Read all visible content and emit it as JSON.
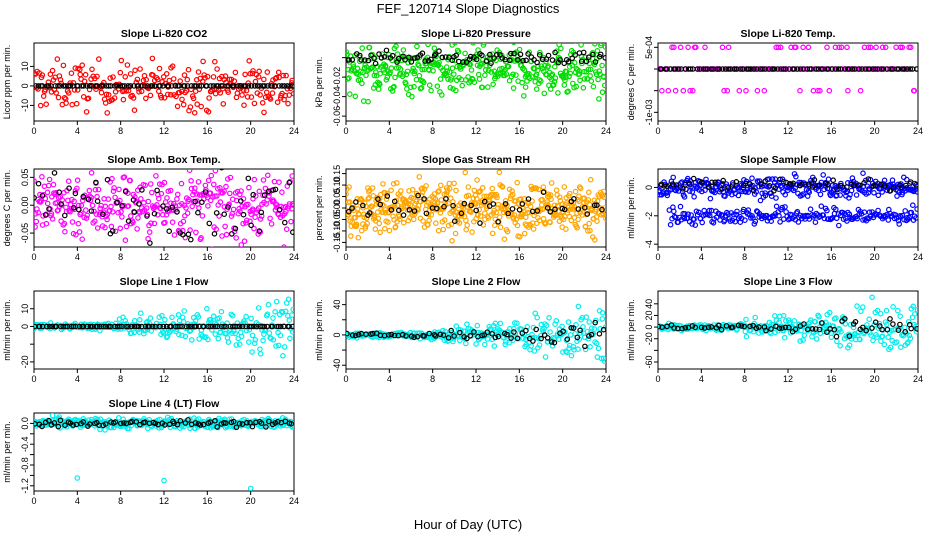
{
  "figure": {
    "title": "FEF_120714  Slope Diagnostics",
    "xlabel": "Hour of Day (UTC)"
  },
  "colors": {
    "red": "#ff0000",
    "green": "#00dd00",
    "magenta": "#ff00ff",
    "orange": "#ffa500",
    "blue": "#0000ff",
    "cyan": "#00eeee",
    "black": "#000000"
  },
  "chart_data": [
    {
      "type": "scatter",
      "title": "Slope Li-820 CO2",
      "ylabel": "Licor ppm per min.",
      "xlim": [
        0,
        24
      ],
      "ylim": [
        -18,
        22
      ],
      "xticks": [
        0,
        4,
        8,
        12,
        16,
        20,
        24
      ],
      "xtick_labels": [
        "0",
        "4",
        "8",
        "12",
        "16",
        "20",
        "24"
      ],
      "yticks": [
        -10,
        0,
        10
      ],
      "ytick_labels": [
        "-10",
        "0",
        "10"
      ],
      "series": [
        {
          "color": "red",
          "style": "scatter",
          "base": 0,
          "spread": 6,
          "x_range": [
            0,
            24
          ],
          "n": 260
        },
        {
          "color": "black",
          "style": "flat",
          "value": 0,
          "x_range": [
            0,
            24
          ],
          "n": 95
        }
      ]
    },
    {
      "type": "scatter",
      "title": "Slope Li-820 Pressure",
      "ylabel": "kPa per min.",
      "xlim": [
        0,
        24
      ],
      "ylim": [
        -0.065,
        0.015
      ],
      "xticks": [
        0,
        4,
        8,
        12,
        16,
        20,
        24
      ],
      "xtick_labels": [
        "0",
        "4",
        "8",
        "12",
        "16",
        "20",
        "24"
      ],
      "yticks": [
        -0.06,
        -0.04,
        -0.02,
        0.0
      ],
      "ytick_labels": [
        "-0.06",
        "-0.04",
        "-0.02",
        ""
      ],
      "series": [
        {
          "color": "green",
          "style": "band",
          "base": -0.012,
          "spread": 0.013,
          "x_range": [
            0,
            24
          ],
          "n": 420
        },
        {
          "color": "black",
          "style": "flat",
          "value": 0.0,
          "jitter": 0.003,
          "x_range": [
            0,
            24
          ],
          "n": 90
        }
      ]
    },
    {
      "type": "scatter",
      "title": "Slope Li-820 Temp.",
      "ylabel": "degrees C per min.",
      "xlim": [
        0,
        24
      ],
      "ylim": [
        -0.0012,
        0.0006
      ],
      "xticks": [
        0,
        4,
        8,
        12,
        16,
        20,
        24
      ],
      "xtick_labels": [
        "0",
        "4",
        "8",
        "12",
        "16",
        "20",
        "24"
      ],
      "yticks": [
        -0.001,
        -0.0005,
        0,
        0.0005
      ],
      "ytick_labels": [
        "-1e-03",
        "",
        "",
        "5e-04"
      ],
      "series": [
        {
          "color": "magenta",
          "style": "levels",
          "levels": [
            0,
            0.0005,
            -0.0005
          ],
          "x_range": [
            0,
            24
          ],
          "n": 140
        },
        {
          "color": "black",
          "style": "flat",
          "value": 0,
          "x_range": [
            0,
            24
          ],
          "n": 90
        }
      ]
    },
    {
      "type": "scatter",
      "title": "Slope Amb. Box Temp.",
      "ylabel": "degrees C per min.",
      "xlim": [
        0,
        24
      ],
      "ylim": [
        -0.075,
        0.065
      ],
      "xticks": [
        0,
        4,
        8,
        12,
        16,
        20,
        24
      ],
      "xtick_labels": [
        "0",
        "4",
        "8",
        "12",
        "16",
        "20",
        "24"
      ],
      "yticks": [
        -0.05,
        0.0,
        0.05
      ],
      "ytick_labels": [
        "-0.05",
        "0.00",
        "0.05"
      ],
      "series": [
        {
          "color": "magenta",
          "style": "scatter",
          "base": 0,
          "spread": 0.03,
          "x_range": [
            0,
            24
          ],
          "n": 380
        },
        {
          "color": "black",
          "style": "scatter",
          "base": 0,
          "spread": 0.028,
          "x_range": [
            0,
            24
          ],
          "n": 70
        }
      ]
    },
    {
      "type": "scatter",
      "title": "Slope Gas Stream RH",
      "ylabel": "percent per min.",
      "xlim": [
        0,
        24
      ],
      "ylim": [
        -0.17,
        0.17
      ],
      "xticks": [
        0,
        4,
        8,
        12,
        16,
        20,
        24
      ],
      "xtick_labels": [
        "0",
        "4",
        "8",
        "12",
        "16",
        "20",
        "24"
      ],
      "yticks": [
        -0.15,
        -0.1,
        -0.05,
        0.0,
        0.05,
        0.1,
        0.15
      ],
      "ytick_labels": [
        "-0.15",
        "-0.10",
        "-0.05",
        "0.00",
        "0.05",
        "0.10",
        "0.15"
      ],
      "series": [
        {
          "color": "orange",
          "style": "scatter",
          "base": 0,
          "spread": 0.055,
          "x_range": [
            0,
            24
          ],
          "n": 520
        },
        {
          "color": "black",
          "style": "scatter",
          "base": 0,
          "spread": 0.03,
          "x_range": [
            0,
            24
          ],
          "n": 55
        }
      ]
    },
    {
      "type": "scatter",
      "title": "Slope Sample Flow",
      "ylabel": "ml/min per min.",
      "xlim": [
        0,
        24
      ],
      "ylim": [
        -4.2,
        1.3
      ],
      "xticks": [
        0,
        4,
        8,
        12,
        16,
        20,
        24
      ],
      "xtick_labels": [
        "0",
        "4",
        "8",
        "12",
        "16",
        "20",
        "24"
      ],
      "yticks": [
        -4,
        -2,
        0
      ],
      "ytick_labels": [
        "-4",
        "-2",
        "0"
      ],
      "series": [
        {
          "color": "blue",
          "style": "band",
          "base": 0,
          "spread": 0.35,
          "x_range": [
            0,
            24
          ],
          "n": 300
        },
        {
          "color": "blue",
          "style": "band",
          "base": -2.0,
          "spread": 0.3,
          "x_range": [
            1,
            24
          ],
          "n": 220
        },
        {
          "color": "black",
          "style": "flat",
          "value": 0.2,
          "jitter": 0.2,
          "x_range": [
            0,
            24
          ],
          "n": 60
        }
      ]
    },
    {
      "type": "scatter",
      "title": "Slope Line 1 Flow",
      "ylabel": "ml/min per min.",
      "xlim": [
        0,
        24
      ],
      "ylim": [
        -24,
        20
      ],
      "xticks": [
        0,
        4,
        8,
        12,
        16,
        20,
        24
      ],
      "xtick_labels": [
        "0",
        "4",
        "8",
        "12",
        "16",
        "20",
        "24"
      ],
      "yticks": [
        -20,
        -10,
        0,
        10
      ],
      "ytick_labels": [
        "-20",
        "",
        "0",
        "10"
      ],
      "series": [
        {
          "color": "cyan",
          "style": "growing",
          "base": 0,
          "spread_start": 0.8,
          "spread_end": 7,
          "x_range": [
            0,
            24
          ],
          "n": 300
        },
        {
          "color": "black",
          "style": "flat",
          "value": 0,
          "x_range": [
            0,
            24
          ],
          "n": 95
        }
      ]
    },
    {
      "type": "scatter",
      "title": "Slope Line 2 Flow",
      "ylabel": "ml/min per min.",
      "xlim": [
        0,
        24
      ],
      "ylim": [
        -45,
        58
      ],
      "xticks": [
        0,
        4,
        8,
        12,
        16,
        20,
        24
      ],
      "xtick_labels": [
        "0",
        "4",
        "8",
        "12",
        "16",
        "20",
        "24"
      ],
      "yticks": [
        -40,
        -20,
        0,
        20,
        40
      ],
      "ytick_labels": [
        "-40",
        "",
        "0",
        "",
        "40"
      ],
      "series": [
        {
          "color": "cyan",
          "style": "growing",
          "base": 0,
          "spread_start": 1.5,
          "spread_end": 16,
          "x_range": [
            0,
            24
          ],
          "n": 300
        },
        {
          "color": "black",
          "style": "growing",
          "base": 0,
          "spread_start": 1,
          "spread_end": 8,
          "x_range": [
            0,
            24
          ],
          "n": 70
        }
      ]
    },
    {
      "type": "scatter",
      "title": "Slope Line 3 Flow",
      "ylabel": "ml/min per min.",
      "xlim": [
        0,
        24
      ],
      "ylim": [
        -72,
        62
      ],
      "xticks": [
        0,
        4,
        8,
        12,
        16,
        20,
        24
      ],
      "xtick_labels": [
        "0",
        "4",
        "8",
        "12",
        "16",
        "20",
        "24"
      ],
      "yticks": [
        -60,
        -40,
        -20,
        0,
        20,
        40
      ],
      "ytick_labels": [
        "-60",
        "",
        "-20",
        "0",
        "20",
        "40"
      ],
      "series": [
        {
          "color": "cyan",
          "style": "growing",
          "base": 0,
          "spread_start": 3,
          "spread_end": 20,
          "x_range": [
            0,
            24
          ],
          "n": 300
        },
        {
          "color": "black",
          "style": "growing",
          "base": 0,
          "spread_start": 2,
          "spread_end": 9,
          "x_range": [
            0,
            24
          ],
          "n": 70
        }
      ]
    },
    {
      "type": "scatter",
      "title": "Slope Line 4 (LT) Flow",
      "ylabel": "ml/min per min.",
      "xlim": [
        0,
        24
      ],
      "ylim": [
        -1.3,
        0.2
      ],
      "xticks": [
        0,
        4,
        8,
        12,
        16,
        20,
        24
      ],
      "xtick_labels": [
        "0",
        "4",
        "8",
        "12",
        "16",
        "20",
        "24"
      ],
      "yticks": [
        -1.2,
        -1.0,
        -0.8,
        -0.6,
        -0.4,
        -0.2,
        0.0
      ],
      "ytick_labels": [
        "-1.2",
        "",
        "-0.8",
        "",
        "-0.4",
        "",
        "0.0"
      ],
      "series": [
        {
          "color": "cyan",
          "style": "band",
          "base": 0,
          "spread": 0.05,
          "x_range": [
            0,
            24
          ],
          "n": 360
        },
        {
          "color": "black",
          "style": "flat",
          "value": 0,
          "jitter": 0.03,
          "x_range": [
            0,
            24
          ],
          "n": 80
        },
        {
          "color": "cyan",
          "style": "points",
          "x": [
            4,
            12,
            20
          ],
          "y": [
            -1.05,
            -1.1,
            -1.25
          ]
        }
      ]
    }
  ]
}
